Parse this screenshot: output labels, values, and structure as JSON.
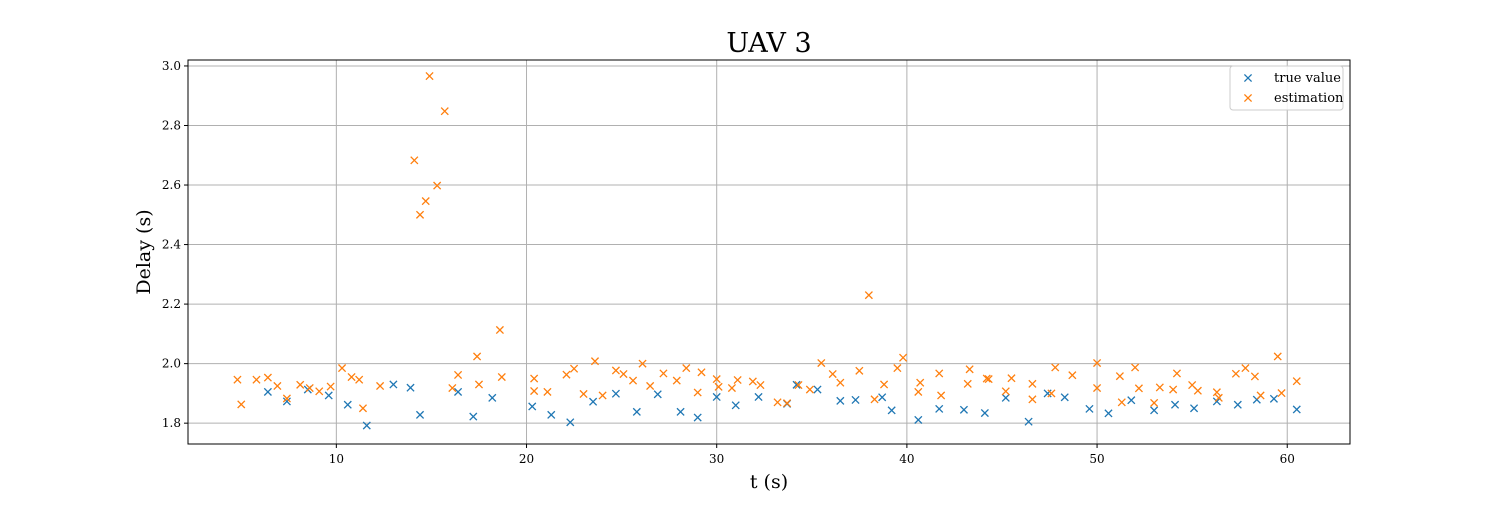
{
  "chart_data": {
    "type": "scatter",
    "title": "UAV 3",
    "xlabel": "t (s)",
    "ylabel": "Delay (s)",
    "xlim": [
      2.2,
      63.3
    ],
    "ylim": [
      1.73,
      3.02
    ],
    "xticks": [
      10,
      20,
      30,
      40,
      50,
      60
    ],
    "yticks": [
      1.8,
      2.0,
      2.2,
      2.4,
      2.6,
      2.8,
      3.0
    ],
    "grid": true,
    "legend_position": "top-right",
    "marker": "x",
    "series": [
      {
        "name": "true value",
        "color": "#1f77b4",
        "points": [
          [
            6.4,
            1.905
          ],
          [
            7.4,
            1.873
          ],
          [
            8.5,
            1.913
          ],
          [
            9.6,
            1.893
          ],
          [
            10.6,
            1.862
          ],
          [
            11.6,
            1.792
          ],
          [
            13.0,
            1.93
          ],
          [
            13.9,
            1.919
          ],
          [
            14.4,
            1.828
          ],
          [
            16.4,
            1.905
          ],
          [
            17.2,
            1.822
          ],
          [
            18.2,
            1.885
          ],
          [
            20.3,
            1.856
          ],
          [
            21.3,
            1.828
          ],
          [
            22.3,
            1.803
          ],
          [
            23.5,
            1.872
          ],
          [
            24.7,
            1.899
          ],
          [
            25.8,
            1.838
          ],
          [
            26.9,
            1.897
          ],
          [
            28.1,
            1.838
          ],
          [
            29.0,
            1.819
          ],
          [
            30.0,
            1.888
          ],
          [
            31.0,
            1.86
          ],
          [
            32.2,
            1.888
          ],
          [
            33.7,
            1.865
          ],
          [
            34.2,
            1.929
          ],
          [
            35.3,
            1.913
          ],
          [
            36.5,
            1.875
          ],
          [
            37.3,
            1.878
          ],
          [
            38.7,
            1.887
          ],
          [
            39.2,
            1.843
          ],
          [
            40.6,
            1.811
          ],
          [
            41.7,
            1.848
          ],
          [
            43.0,
            1.845
          ],
          [
            44.1,
            1.834
          ],
          [
            45.2,
            1.885
          ],
          [
            46.4,
            1.805
          ],
          [
            47.4,
            1.9
          ],
          [
            48.3,
            1.887
          ],
          [
            49.6,
            1.848
          ],
          [
            50.6,
            1.833
          ],
          [
            51.8,
            1.877
          ],
          [
            53.0,
            1.843
          ],
          [
            54.1,
            1.862
          ],
          [
            55.1,
            1.85
          ],
          [
            56.3,
            1.873
          ],
          [
            57.4,
            1.862
          ],
          [
            58.4,
            1.879
          ],
          [
            59.3,
            1.882
          ],
          [
            60.5,
            1.846
          ]
        ]
      },
      {
        "name": "estimation",
        "color": "#ff7f0e",
        "points": [
          [
            4.8,
            1.946
          ],
          [
            5.0,
            1.863
          ],
          [
            5.8,
            1.946
          ],
          [
            6.4,
            1.953
          ],
          [
            6.9,
            1.925
          ],
          [
            7.4,
            1.883
          ],
          [
            8.1,
            1.929
          ],
          [
            8.6,
            1.918
          ],
          [
            9.1,
            1.907
          ],
          [
            9.7,
            1.923
          ],
          [
            10.3,
            1.985
          ],
          [
            10.8,
            1.955
          ],
          [
            11.2,
            1.946
          ],
          [
            11.4,
            1.85
          ],
          [
            12.3,
            1.925
          ],
          [
            14.1,
            2.683
          ],
          [
            14.4,
            2.5
          ],
          [
            14.7,
            2.546
          ],
          [
            14.9,
            2.966
          ],
          [
            15.3,
            2.598
          ],
          [
            15.7,
            2.848
          ],
          [
            16.1,
            1.918
          ],
          [
            16.4,
            1.962
          ],
          [
            17.4,
            2.024
          ],
          [
            17.5,
            1.93
          ],
          [
            18.6,
            2.113
          ],
          [
            18.7,
            1.955
          ],
          [
            20.4,
            1.95
          ],
          [
            20.4,
            1.908
          ],
          [
            21.1,
            1.905
          ],
          [
            22.1,
            1.963
          ],
          [
            22.5,
            1.983
          ],
          [
            23.0,
            1.898
          ],
          [
            23.6,
            2.008
          ],
          [
            24.0,
            1.893
          ],
          [
            24.7,
            1.977
          ],
          [
            25.1,
            1.965
          ],
          [
            25.6,
            1.943
          ],
          [
            26.1,
            2.0
          ],
          [
            26.5,
            1.925
          ],
          [
            27.2,
            1.967
          ],
          [
            27.9,
            1.943
          ],
          [
            28.4,
            1.985
          ],
          [
            29.0,
            1.903
          ],
          [
            29.2,
            1.971
          ],
          [
            30.0,
            1.948
          ],
          [
            30.1,
            1.922
          ],
          [
            30.8,
            1.918
          ],
          [
            31.1,
            1.945
          ],
          [
            31.9,
            1.94
          ],
          [
            32.3,
            1.928
          ],
          [
            33.2,
            1.87
          ],
          [
            33.7,
            1.867
          ],
          [
            34.3,
            1.928
          ],
          [
            34.9,
            1.913
          ],
          [
            35.5,
            2.002
          ],
          [
            36.1,
            1.965
          ],
          [
            36.5,
            1.936
          ],
          [
            37.5,
            1.976
          ],
          [
            38.0,
            2.23
          ],
          [
            38.3,
            1.88
          ],
          [
            38.8,
            1.93
          ],
          [
            39.5,
            1.985
          ],
          [
            39.8,
            2.02
          ],
          [
            40.6,
            1.905
          ],
          [
            40.7,
            1.936
          ],
          [
            41.7,
            1.967
          ],
          [
            41.8,
            1.893
          ],
          [
            43.2,
            1.932
          ],
          [
            43.3,
            1.981
          ],
          [
            44.2,
            1.95
          ],
          [
            44.3,
            1.948
          ],
          [
            45.2,
            1.907
          ],
          [
            45.5,
            1.951
          ],
          [
            46.6,
            1.932
          ],
          [
            46.6,
            1.88
          ],
          [
            47.6,
            1.9
          ],
          [
            47.8,
            1.987
          ],
          [
            48.7,
            1.961
          ],
          [
            50.0,
            2.002
          ],
          [
            50.0,
            1.918
          ],
          [
            51.2,
            1.958
          ],
          [
            51.3,
            1.87
          ],
          [
            52.0,
            1.987
          ],
          [
            52.2,
            1.917
          ],
          [
            53.0,
            1.868
          ],
          [
            53.3,
            1.92
          ],
          [
            54.0,
            1.913
          ],
          [
            54.2,
            1.967
          ],
          [
            55.0,
            1.928
          ],
          [
            55.3,
            1.909
          ],
          [
            56.3,
            1.904
          ],
          [
            56.4,
            1.885
          ],
          [
            57.3,
            1.966
          ],
          [
            57.8,
            1.985
          ],
          [
            58.3,
            1.957
          ],
          [
            58.6,
            1.893
          ],
          [
            59.5,
            2.024
          ],
          [
            59.7,
            1.901
          ],
          [
            60.5,
            1.941
          ]
        ]
      }
    ]
  }
}
